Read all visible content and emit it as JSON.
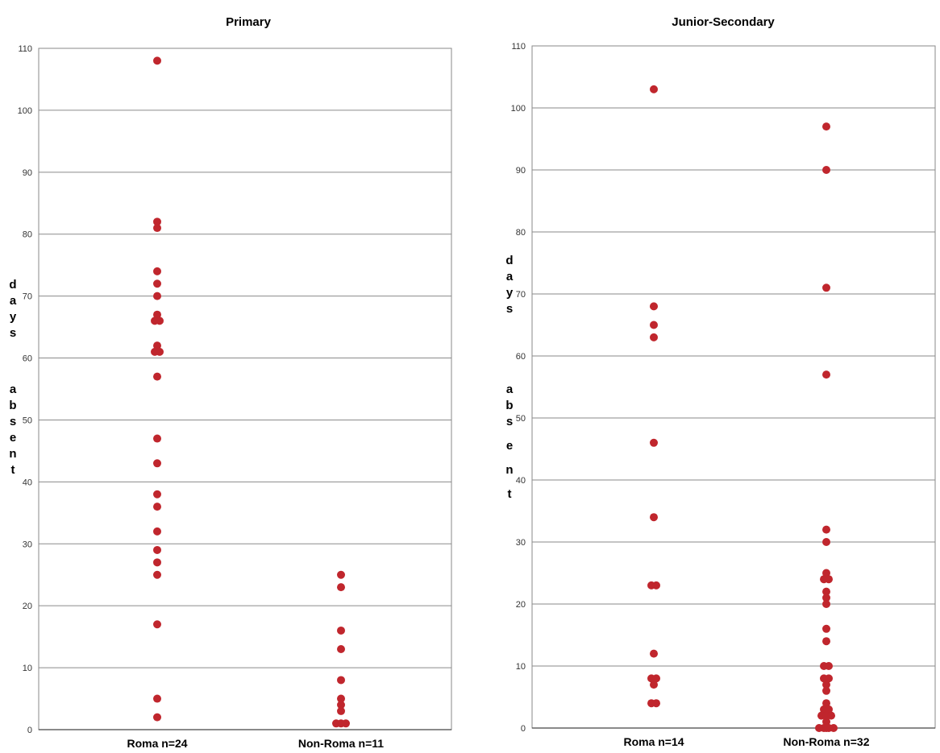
{
  "chart_data": [
    {
      "type": "scatter",
      "title": "Primary",
      "ylabel": "days absent",
      "ylim": [
        0,
        110
      ],
      "yticks": [
        0,
        10,
        20,
        30,
        40,
        50,
        60,
        70,
        80,
        90,
        100,
        110
      ],
      "grid": true,
      "categories": [
        "Roma n=24",
        "Non-Roma n=11"
      ],
      "series": [
        {
          "category": "Roma n=24",
          "color": "#c0262d",
          "points": [
            [
              0,
              108
            ],
            [
              0,
              82
            ],
            [
              0,
              81
            ],
            [
              0,
              74
            ],
            [
              0,
              72
            ],
            [
              0,
              70
            ],
            [
              0,
              67
            ],
            [
              -0.2,
              66
            ],
            [
              0.2,
              66
            ],
            [
              0,
              62
            ],
            [
              -0.2,
              61
            ],
            [
              0.2,
              61
            ],
            [
              0,
              57
            ],
            [
              0,
              47
            ],
            [
              0,
              43
            ],
            [
              0,
              38
            ],
            [
              0,
              36
            ],
            [
              0,
              32
            ],
            [
              0,
              29
            ],
            [
              0,
              27
            ],
            [
              0,
              25
            ],
            [
              0,
              17
            ],
            [
              0,
              5
            ],
            [
              0,
              2
            ]
          ]
        },
        {
          "category": "Non-Roma n=11",
          "color": "#c0262d",
          "points": [
            [
              0,
              25
            ],
            [
              0,
              23
            ],
            [
              0,
              16
            ],
            [
              0,
              13
            ],
            [
              0,
              8
            ],
            [
              0,
              5
            ],
            [
              0,
              4
            ],
            [
              0,
              3
            ],
            [
              -0.4,
              1
            ],
            [
              0,
              1
            ],
            [
              0.4,
              1
            ]
          ]
        }
      ]
    },
    {
      "type": "scatter",
      "title": "Junior-Secondary",
      "ylabel": "days absent",
      "ylim": [
        0,
        110
      ],
      "yticks": [
        0,
        10,
        20,
        30,
        40,
        50,
        60,
        70,
        80,
        90,
        100,
        110
      ],
      "grid": true,
      "categories": [
        "Roma n=14",
        "Non-Roma n=32"
      ],
      "series": [
        {
          "category": "Roma n=14",
          "color": "#c0262d",
          "points": [
            [
              0,
              103
            ],
            [
              0,
              68
            ],
            [
              0,
              65
            ],
            [
              0,
              63
            ],
            [
              0,
              46
            ],
            [
              0,
              34
            ],
            [
              -0.2,
              23
            ],
            [
              0.2,
              23
            ],
            [
              0,
              12
            ],
            [
              -0.2,
              8
            ],
            [
              0.2,
              8
            ],
            [
              0,
              7
            ],
            [
              -0.2,
              4
            ],
            [
              0.2,
              4
            ]
          ]
        },
        {
          "category": "Non-Roma n=32",
          "color": "#c0262d",
          "points": [
            [
              0,
              97
            ],
            [
              0,
              90
            ],
            [
              0,
              71
            ],
            [
              0,
              57
            ],
            [
              0,
              32
            ],
            [
              0,
              30
            ],
            [
              0,
              25
            ],
            [
              -0.2,
              24
            ],
            [
              0.2,
              24
            ],
            [
              0,
              22
            ],
            [
              0,
              21
            ],
            [
              0,
              20
            ],
            [
              0,
              16
            ],
            [
              0,
              14
            ],
            [
              -0.2,
              10
            ],
            [
              0.2,
              10
            ],
            [
              -0.2,
              8
            ],
            [
              0.2,
              8
            ],
            [
              0,
              7
            ],
            [
              0,
              6
            ],
            [
              0,
              4
            ],
            [
              -0.2,
              3
            ],
            [
              0.2,
              3
            ],
            [
              -0.4,
              2
            ],
            [
              0,
              2
            ],
            [
              0.4,
              2
            ],
            [
              0,
              1
            ],
            [
              -0.6,
              0
            ],
            [
              -0.2,
              0
            ],
            [
              0.2,
              0
            ],
            [
              0.6,
              0
            ],
            [
              0,
              0
            ]
          ]
        }
      ]
    }
  ]
}
